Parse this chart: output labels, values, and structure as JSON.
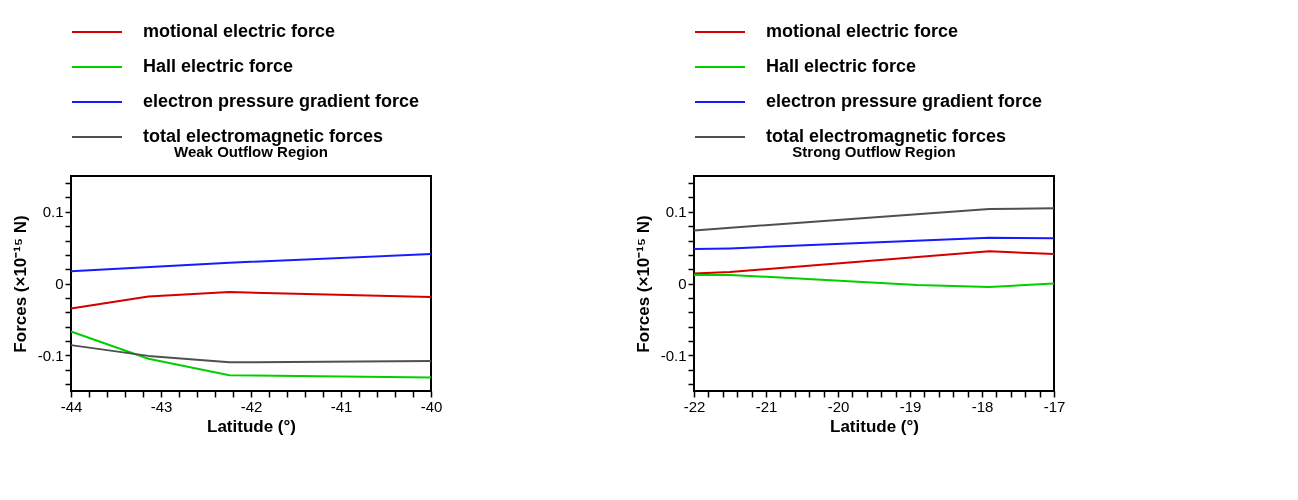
{
  "chart_data": [
    {
      "type": "line",
      "title": "Weak Outflow Region",
      "xlabel": "Latitude (°)",
      "ylabel": "Forces (×10⁻¹⁵ N)",
      "legend": "top",
      "grid": false,
      "marker": "none",
      "line_style": "solid",
      "xlim": [
        -44,
        -40
      ],
      "ylim": [
        -0.15,
        0.15
      ],
      "xticks": [
        -44,
        {
          "value": -43.8,
          "label": null
        },
        {
          "value": -43.6,
          "label": null
        },
        {
          "value": -43.4,
          "label": null
        },
        {
          "value": -43.2,
          "label": null
        },
        -43,
        {
          "value": -42.8,
          "label": null
        },
        {
          "value": -42.6,
          "label": null
        },
        {
          "value": -42.4,
          "label": null
        },
        {
          "value": -42.2,
          "label": null
        },
        -42,
        {
          "value": -41.8,
          "label": null
        },
        {
          "value": -41.6,
          "label": null
        },
        {
          "value": -41.4,
          "label": null
        },
        {
          "value": -41.2,
          "label": null
        },
        -41,
        {
          "value": -40.8,
          "label": null
        },
        {
          "value": -40.6,
          "label": null
        },
        {
          "value": -40.4,
          "label": null
        },
        {
          "value": -40.2,
          "label": null
        },
        -40
      ],
      "yticks": [
        {
          "value": -0.14,
          "label": null
        },
        {
          "value": -0.12,
          "label": null
        },
        -0.1,
        {
          "value": -0.08,
          "label": null
        },
        {
          "value": -0.06,
          "label": null
        },
        {
          "value": -0.04,
          "label": null
        },
        {
          "value": -0.02,
          "label": null
        },
        0,
        {
          "value": 0.02,
          "label": null
        },
        {
          "value": 0.04,
          "label": null
        },
        {
          "value": 0.06,
          "label": null
        },
        {
          "value": 0.08,
          "label": null
        },
        0.1,
        {
          "value": 0.12,
          "label": null
        },
        {
          "value": 0.14,
          "label": null
        }
      ],
      "series": [
        {
          "name": "motional electric force",
          "color": "#d40000",
          "x": [
            -44,
            -43.14,
            -42.24,
            -40
          ],
          "values": [
            -0.035,
            -0.018,
            -0.012,
            -0.019
          ]
        },
        {
          "name": "Hall electric force",
          "color": "#00d000",
          "x": [
            -44,
            -43.14,
            -42.24,
            -40
          ],
          "values": [
            -0.067,
            -0.105,
            -0.128,
            -0.131
          ]
        },
        {
          "name": "electron pressure gradient force",
          "color": "#1a1aff",
          "x": [
            -44,
            -42.24,
            -40
          ],
          "values": [
            0.017,
            0.029,
            0.041
          ]
        },
        {
          "name": "total electromagnetic forces",
          "color": "#505050",
          "x": [
            -44,
            -43.14,
            -42.24,
            -40
          ],
          "values": [
            -0.086,
            -0.101,
            -0.11,
            -0.108
          ]
        }
      ]
    },
    {
      "type": "line",
      "title": "Strong Outflow Region",
      "xlabel": "Latitude (°)",
      "ylabel": "Forces (×10⁻¹⁵ N)",
      "legend": "top",
      "grid": false,
      "marker": "none",
      "line_style": "solid",
      "xlim": [
        -22,
        -17
      ],
      "ylim": [
        -0.15,
        0.15
      ],
      "xticks": [
        -22,
        {
          "value": -21.8,
          "label": null
        },
        {
          "value": -21.6,
          "label": null
        },
        {
          "value": -21.4,
          "label": null
        },
        {
          "value": -21.2,
          "label": null
        },
        -21,
        {
          "value": -20.8,
          "label": null
        },
        {
          "value": -20.6,
          "label": null
        },
        {
          "value": -20.4,
          "label": null
        },
        {
          "value": -20.2,
          "label": null
        },
        -20,
        {
          "value": -19.8,
          "label": null
        },
        {
          "value": -19.6,
          "label": null
        },
        {
          "value": -19.4,
          "label": null
        },
        {
          "value": -19.2,
          "label": null
        },
        -19,
        {
          "value": -18.8,
          "label": null
        },
        {
          "value": -18.6,
          "label": null
        },
        {
          "value": -18.4,
          "label": null
        },
        {
          "value": -18.2,
          "label": null
        },
        -18,
        {
          "value": -17.8,
          "label": null
        },
        {
          "value": -17.6,
          "label": null
        },
        {
          "value": -17.4,
          "label": null
        },
        {
          "value": -17.2,
          "label": null
        },
        -17
      ],
      "yticks": [
        {
          "value": -0.14,
          "label": null
        },
        {
          "value": -0.12,
          "label": null
        },
        -0.1,
        {
          "value": -0.08,
          "label": null
        },
        {
          "value": -0.06,
          "label": null
        },
        {
          "value": -0.04,
          "label": null
        },
        {
          "value": -0.02,
          "label": null
        },
        0,
        {
          "value": 0.02,
          "label": null
        },
        {
          "value": 0.04,
          "label": null
        },
        {
          "value": 0.06,
          "label": null
        },
        {
          "value": 0.08,
          "label": null
        },
        0.1,
        {
          "value": 0.12,
          "label": null
        },
        {
          "value": 0.14,
          "label": null
        }
      ],
      "series": [
        {
          "name": "motional electric force",
          "color": "#d40000",
          "x": [
            -22,
            -21.5,
            -17.9,
            -17
          ],
          "values": [
            0.014,
            0.016,
            0.045,
            0.041
          ]
        },
        {
          "name": "Hall electric force",
          "color": "#00d000",
          "x": [
            -22,
            -21.5,
            -18.9,
            -17.9,
            -17
          ],
          "values": [
            0.012,
            0.012,
            -0.002,
            -0.005,
            0
          ]
        },
        {
          "name": "electron pressure gradient force",
          "color": "#1a1aff",
          "x": [
            -22,
            -21.5,
            -17.9,
            -17
          ],
          "values": [
            0.048,
            0.049,
            0.064,
            0.063
          ]
        },
        {
          "name": "total electromagnetic forces",
          "color": "#505050",
          "x": [
            -22,
            -17.9,
            -17
          ],
          "values": [
            0.074,
            0.104,
            0.105
          ]
        }
      ]
    }
  ]
}
